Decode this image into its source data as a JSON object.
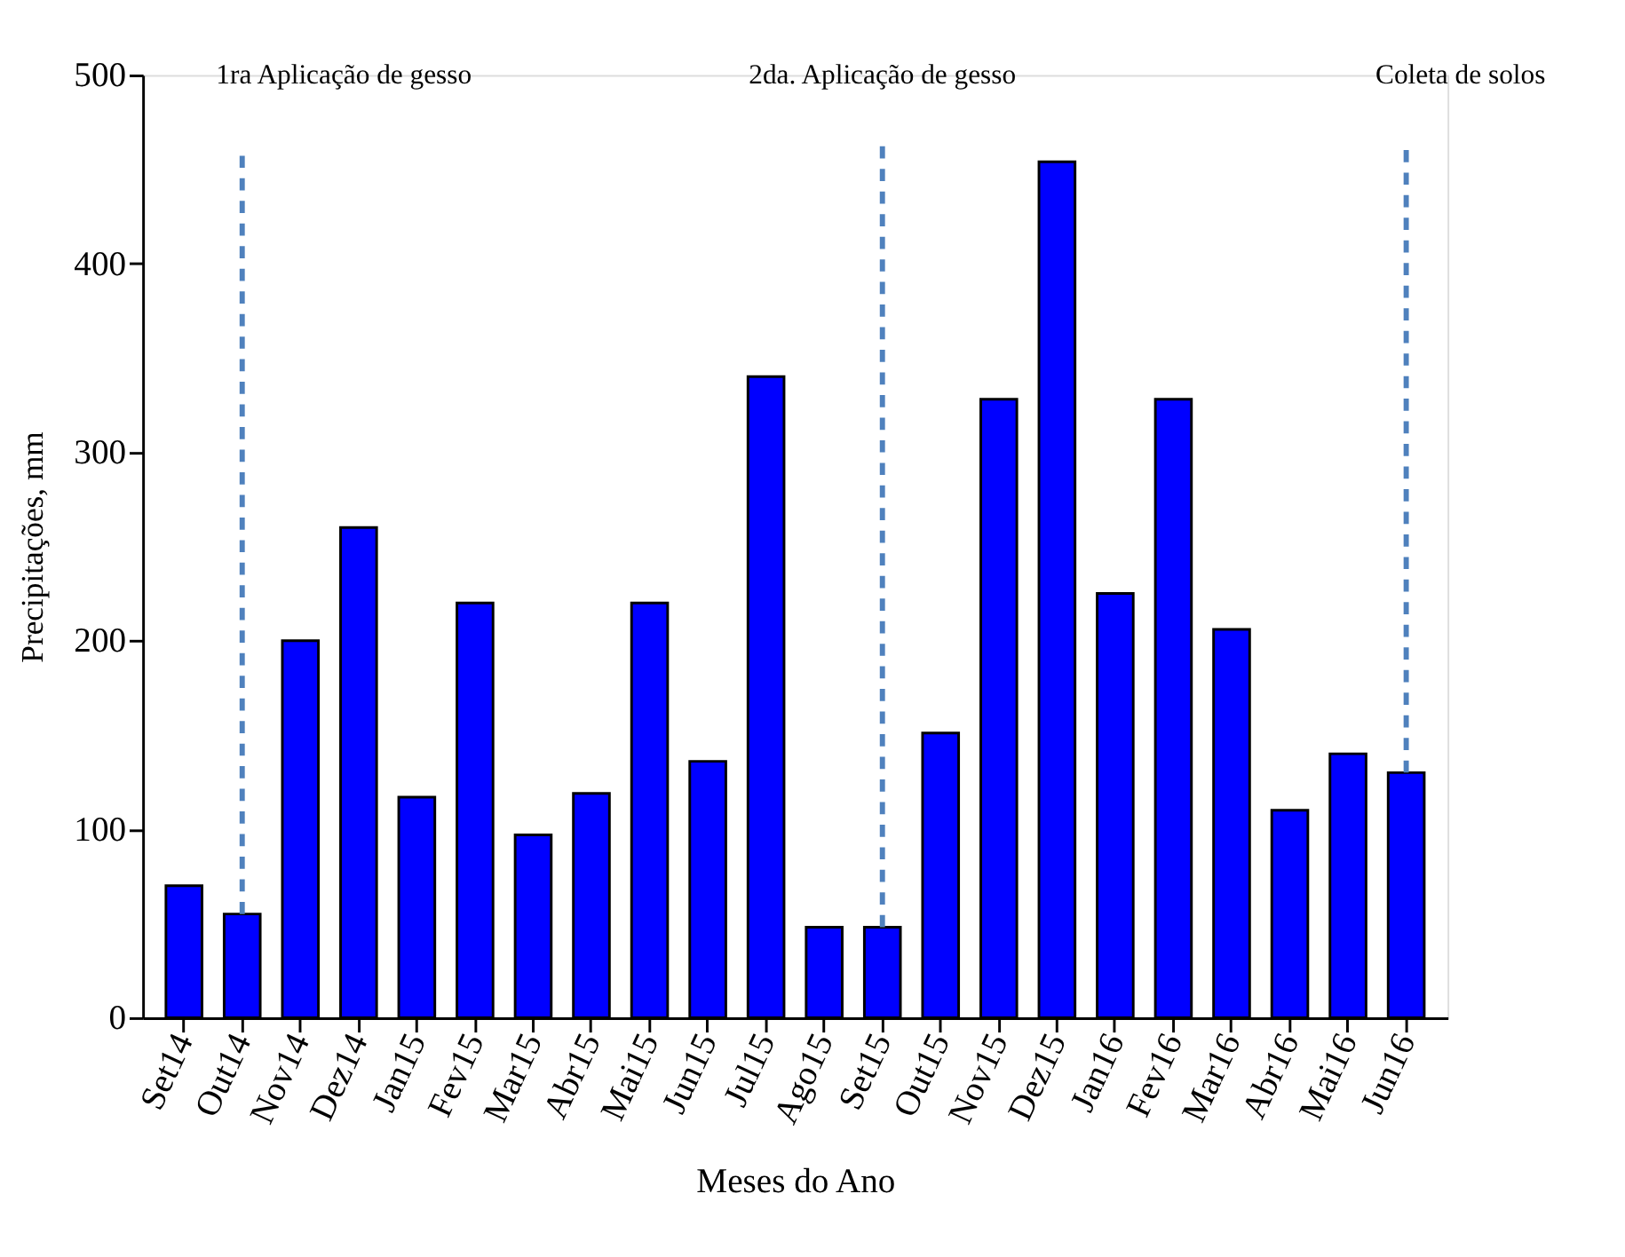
{
  "chart_data": {
    "type": "bar",
    "xlabel": "Meses do Ano",
    "ylabel": "Precipitações, mm",
    "categories": [
      "Set14",
      "Out14",
      "Nov14",
      "Dez14",
      "Jan15",
      "Fev15",
      "Mar15",
      "Abr15",
      "Mai15",
      "Jun15",
      "Jul15",
      "Ago15",
      "Set15",
      "Out15",
      "Nov15",
      "Dez15",
      "Jan16",
      "Fev16",
      "Mar16",
      "Abr16",
      "Mai16",
      "Jun16"
    ],
    "values": [
      70,
      55,
      200,
      260,
      117,
      220,
      97,
      119,
      220,
      136,
      340,
      48,
      48,
      151,
      328,
      454,
      225,
      328,
      206,
      110,
      140,
      130
    ],
    "color": "#0000ff",
    "ylim": [
      0,
      500
    ],
    "yticks": [
      0,
      100,
      200,
      300,
      400,
      500
    ],
    "grid": false,
    "ref_lines": [
      {
        "axis": "x",
        "value": "Out14",
        "label": "1ra Aplicação de gesso",
        "color": "#4f81bd",
        "line_style": "dashed"
      },
      {
        "axis": "x",
        "value": "Set15",
        "label": "2da. Aplicação de gesso",
        "color": "#4f81bd",
        "line_style": "dashed"
      },
      {
        "axis": "x",
        "value": "Jun16",
        "label": "Coleta de solos",
        "color": "#4f81bd",
        "line_style": "dashed"
      }
    ]
  }
}
